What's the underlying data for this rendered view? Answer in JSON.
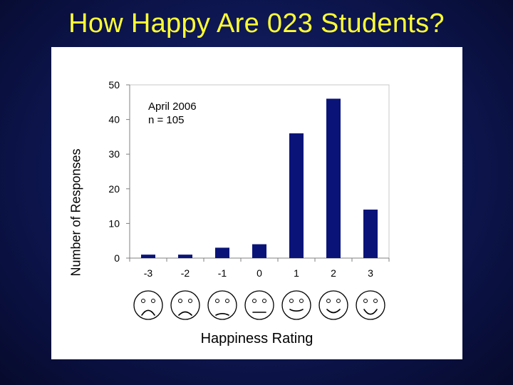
{
  "slide": {
    "title": "How Happy Are 023 Students?"
  },
  "chart_data": {
    "type": "bar",
    "categories": [
      "-3",
      "-2",
      "-1",
      "0",
      "1",
      "2",
      "3"
    ],
    "values": [
      1,
      1,
      3,
      4,
      36,
      46,
      14
    ],
    "xlabel": "Happiness Rating",
    "ylabel": "Number of Responses",
    "ylim": [
      0,
      50
    ],
    "yticks": [
      0,
      10,
      20,
      30,
      40,
      50
    ],
    "grid": false,
    "bar_color": "#0a1478",
    "annotation": [
      "April 2006",
      "n = 105"
    ],
    "face_icons": [
      "very-sad-face-icon",
      "sad-face-icon",
      "slightly-sad-face-icon",
      "neutral-face-icon",
      "slightly-happy-face-icon",
      "happy-face-icon",
      "very-happy-face-icon"
    ]
  }
}
